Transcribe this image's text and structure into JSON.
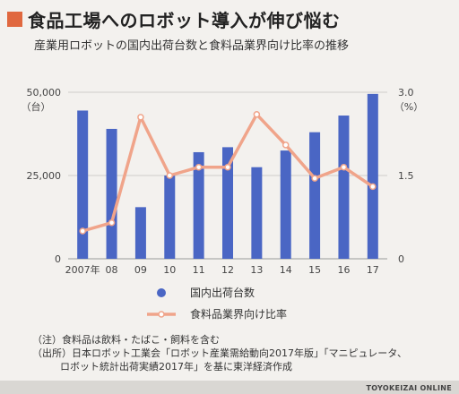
{
  "header": {
    "title": "食品工場へのロボット導入が伸び悩む",
    "subtitle": "産業用ロボットの国内出荷台数と食料品業界向け比率の推移"
  },
  "colors": {
    "bar": "#4a66c4",
    "line": "#f0a48a",
    "marker_fill": "#ffffff",
    "title_mark": "#e0683f"
  },
  "chart_data": {
    "type": "bar",
    "categories": [
      "2007年",
      "08",
      "09",
      "10",
      "11",
      "12",
      "13",
      "14",
      "15",
      "16",
      "17"
    ],
    "series": [
      {
        "name": "国内出荷台数",
        "type": "bar",
        "axis": "left",
        "values": [
          44500,
          39000,
          15500,
          25000,
          32000,
          33500,
          27500,
          32500,
          38000,
          43000,
          49500
        ]
      },
      {
        "name": "食料品業界向け比率",
        "type": "line",
        "axis": "right",
        "values": [
          0.5,
          0.65,
          2.55,
          1.5,
          1.65,
          1.65,
          2.6,
          2.05,
          1.45,
          1.65,
          1.3
        ]
      }
    ],
    "left_axis": {
      "ylim": [
        0,
        50000
      ],
      "ticks": [
        "0",
        "25,000",
        "50,000"
      ],
      "tick_values": [
        0,
        25000,
        50000
      ],
      "unit": "（台）"
    },
    "right_axis": {
      "ylim": [
        0,
        3.0
      ],
      "ticks": [
        "0",
        "1.5",
        "3.0"
      ],
      "tick_values": [
        0,
        1.5,
        3.0
      ],
      "unit": "（%）"
    },
    "grid": true,
    "legend_position": "bottom"
  },
  "notes": {
    "line1": "（注）食料品は飲料・たばこ・飼料を含む",
    "line2": "（出所）日本ロボット工業会「ロボット産業需給動向2017年版」「マニピュレータ、",
    "line3": "ロボット統計出荷実績2017年」を基に東洋経済作成"
  },
  "footer": {
    "brand": "TOYOKEIZAI ONLINE"
  }
}
